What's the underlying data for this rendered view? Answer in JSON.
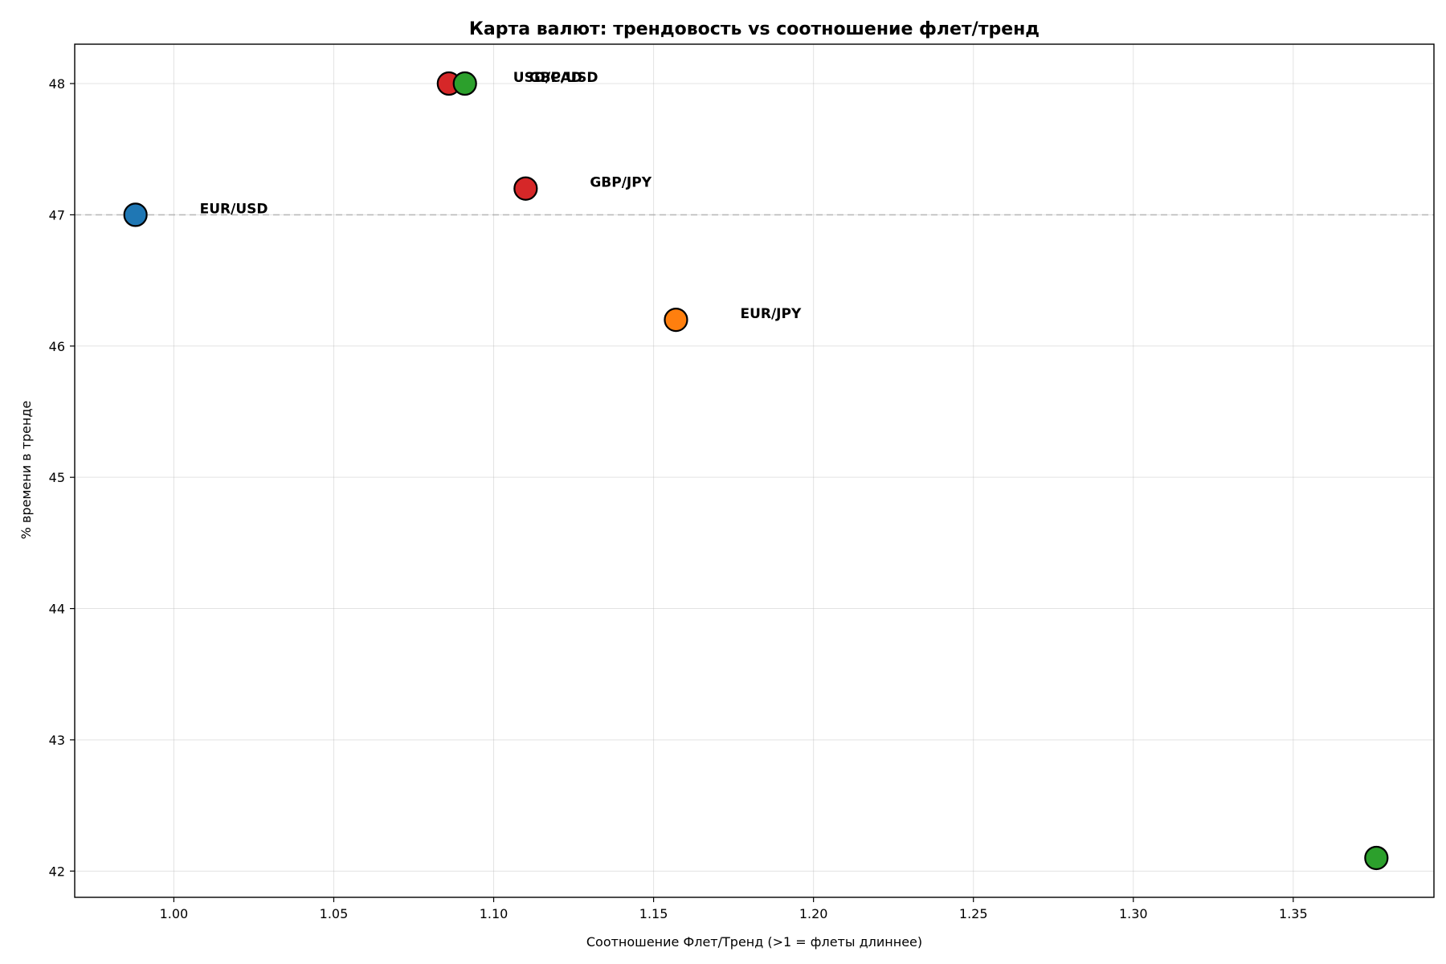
{
  "chart_data": {
    "type": "scatter",
    "title": "Карта валют: трендовость vs соотношение флет/тренд",
    "xlabel": "Соотношение Флет/Тренд (>1 = флеты длиннее)",
    "ylabel": "% времени в тренде",
    "xlim": [
      0.969,
      1.394
    ],
    "ylim": [
      41.8,
      48.3
    ],
    "xticks": [
      "1.00",
      "1.05",
      "1.10",
      "1.15",
      "1.20",
      "1.25",
      "1.30",
      "1.35"
    ],
    "yticks": [
      "42",
      "43",
      "44",
      "45",
      "46",
      "47",
      "48"
    ],
    "grid": true,
    "reference_line_y": 47.0,
    "points": [
      {
        "label": "EUR/USD",
        "x": 0.988,
        "y": 47.0,
        "color": "#1f77b4"
      },
      {
        "label": "USD/CAD",
        "x": 1.086,
        "y": 48.0,
        "color": "#d62728"
      },
      {
        "label": "GBP/USD",
        "x": 1.091,
        "y": 48.0,
        "color": "#2ca02c"
      },
      {
        "label": "GBP/JPY",
        "x": 1.11,
        "y": 47.2,
        "color": "#d62728"
      },
      {
        "label": "EUR/JPY",
        "x": 1.157,
        "y": 46.2,
        "color": "#ff7f0e"
      },
      {
        "label": "",
        "x": 1.376,
        "y": 42.1,
        "color": "#2ca02c"
      }
    ]
  }
}
